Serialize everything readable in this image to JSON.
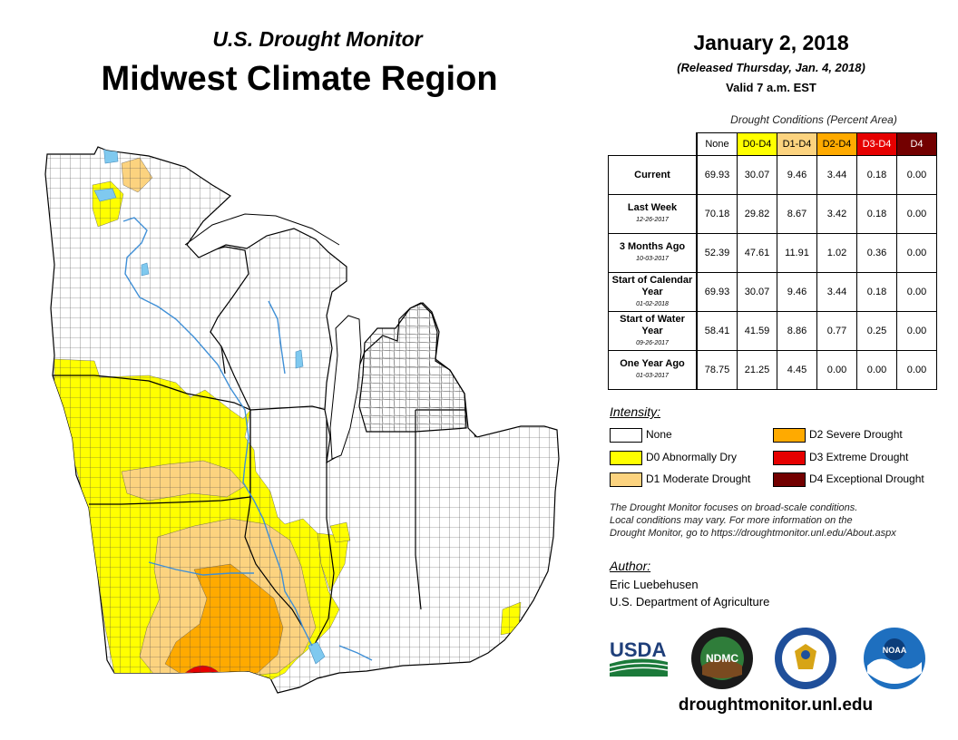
{
  "header": {
    "product": "U.S. Drought Monitor",
    "region": "Midwest Climate Region",
    "date": "January 2, 2018",
    "released": "(Released Thursday, Jan. 4, 2018)",
    "valid": "Valid 7 a.m. EST"
  },
  "table": {
    "caption": "Drought Conditions (Percent Area)",
    "columns": [
      "None",
      "D0-D4",
      "D1-D4",
      "D2-D4",
      "D3-D4",
      "D4"
    ],
    "column_colors": [
      "#ffffff",
      "#ffff00",
      "#fcd37f",
      "#ffaa00",
      "#e60000",
      "#730000"
    ],
    "rows": [
      {
        "label": "Current",
        "date": "",
        "values": [
          "69.93",
          "30.07",
          "9.46",
          "3.44",
          "0.18",
          "0.00"
        ]
      },
      {
        "label": "Last Week",
        "date": "12-26-2017",
        "values": [
          "70.18",
          "29.82",
          "8.67",
          "3.42",
          "0.18",
          "0.00"
        ]
      },
      {
        "label": "3 Months Ago",
        "date": "10-03-2017",
        "values": [
          "52.39",
          "47.61",
          "11.91",
          "1.02",
          "0.36",
          "0.00"
        ]
      },
      {
        "label": "Start of Calendar Year",
        "date": "01-02-2018",
        "values": [
          "69.93",
          "30.07",
          "9.46",
          "3.44",
          "0.18",
          "0.00"
        ]
      },
      {
        "label": "Start of Water Year",
        "date": "09-26-2017",
        "values": [
          "58.41",
          "41.59",
          "8.86",
          "0.77",
          "0.25",
          "0.00"
        ]
      },
      {
        "label": "One Year Ago",
        "date": "01-03-2017",
        "values": [
          "78.75",
          "21.25",
          "4.45",
          "0.00",
          "0.00",
          "0.00"
        ]
      }
    ]
  },
  "legend": {
    "heading": "Intensity:",
    "items": [
      {
        "label": "None",
        "color": "#ffffff"
      },
      {
        "label": "D0 Abnormally Dry",
        "color": "#ffff00"
      },
      {
        "label": "D1 Moderate Drought",
        "color": "#fcd37f"
      },
      {
        "label": "D2 Severe Drought",
        "color": "#ffaa00"
      },
      {
        "label": "D3 Extreme Drought",
        "color": "#e60000"
      },
      {
        "label": "D4 Exceptional Drought",
        "color": "#730000"
      }
    ]
  },
  "note": {
    "line1": "The Drought Monitor focuses on broad-scale conditions.",
    "line2": "Local conditions may vary. For more information on the",
    "line3": "Drought Monitor, go to https://droughtmonitor.unl.edu/About.aspx"
  },
  "author": {
    "heading": "Author:",
    "name": "Eric Luebehusen",
    "org": "U.S. Department of Agriculture"
  },
  "logos": {
    "usda": "USDA",
    "ndmc": "NDMC",
    "noaa": "NOAA"
  },
  "website": "droughtmonitor.unl.edu",
  "colors": {
    "water": "#7fc9ef",
    "county_line": "#555555"
  }
}
